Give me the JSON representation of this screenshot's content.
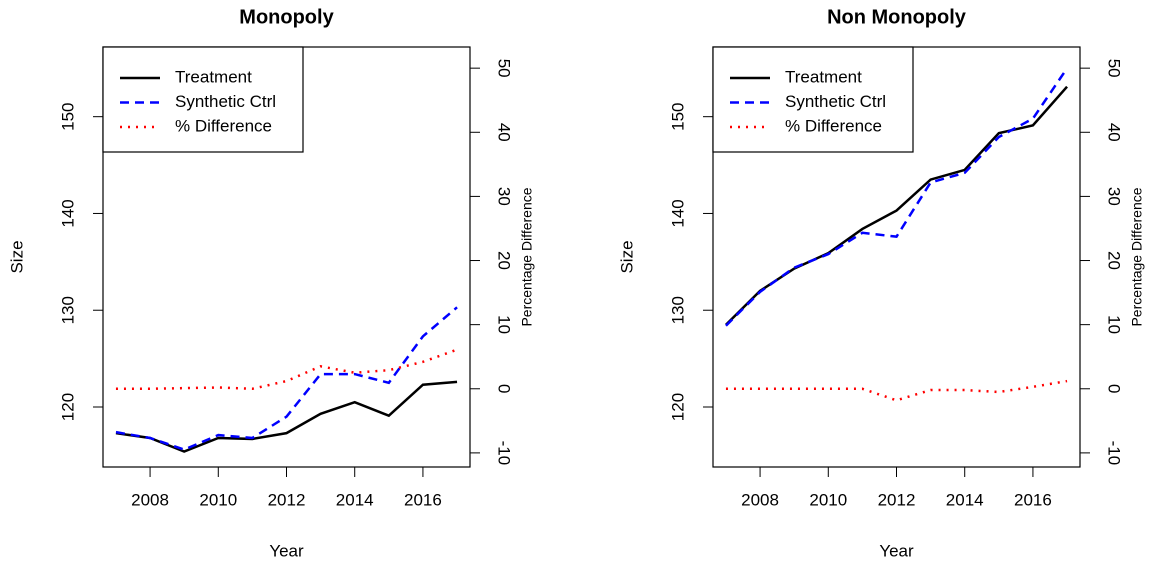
{
  "chart_data": [
    {
      "type": "line",
      "title": "Monopoly",
      "x_label": "Year",
      "y_label": "Size",
      "y2_label": "Percentage Difference",
      "x": [
        2007,
        2008,
        2009,
        2010,
        2011,
        2012,
        2013,
        2014,
        2015,
        2016,
        2017
      ],
      "series": [
        {
          "name": "Treatment",
          "color": "#000000",
          "dash": "solid",
          "values": [
            117.3,
            116.8,
            115.4,
            116.8,
            116.7,
            117.3,
            119.3,
            120.5,
            119.1,
            122.3,
            122.6
          ]
        },
        {
          "name": "Synthetic Ctrl",
          "color": "#0000ff",
          "dash": "dashed",
          "values": [
            117.4,
            116.8,
            115.6,
            117.1,
            116.8,
            119.0,
            123.4,
            123.4,
            122.5,
            127.3,
            130.3
          ]
        },
        {
          "name": "% Difference",
          "color": "#ff0000",
          "dash": "dotted",
          "axis": "y2",
          "values": [
            0,
            0,
            0.1,
            0.2,
            0,
            1.2,
            3.5,
            2.5,
            2.9,
            4.2,
            6.1
          ]
        }
      ],
      "xlim": [
        2006.62,
        2017.38
      ],
      "xticks": [
        2008,
        2010,
        2012,
        2014,
        2016
      ],
      "ylim": [
        113.8,
        157.2
      ],
      "yticks": [
        120,
        130,
        140,
        150
      ],
      "y2lim": [
        -12.2,
        53.3
      ],
      "y2ticks": [
        -10,
        0,
        10,
        20,
        30,
        40,
        50
      ],
      "legend": "top-left"
    },
    {
      "type": "line",
      "title": "Non Monopoly",
      "x_label": "Year",
      "y_label": "Size",
      "y2_label": "Percentage Difference",
      "x": [
        2007,
        2008,
        2009,
        2010,
        2011,
        2012,
        2013,
        2014,
        2015,
        2016,
        2017
      ],
      "series": [
        {
          "name": "Treatment",
          "color": "#000000",
          "dash": "solid",
          "values": [
            128.5,
            132.0,
            134.3,
            135.9,
            138.4,
            140.3,
            143.5,
            144.5,
            148.3,
            149.1,
            153.1
          ]
        },
        {
          "name": "Synthetic Ctrl",
          "color": "#0000ff",
          "dash": "dashed",
          "values": [
            128.4,
            131.9,
            134.4,
            135.8,
            138.0,
            137.6,
            143.2,
            144.2,
            147.9,
            149.8,
            155.0
          ]
        },
        {
          "name": "% Difference",
          "color": "#ff0000",
          "dash": "dotted",
          "axis": "y2",
          "values": [
            0,
            0,
            0,
            0,
            0,
            -1.8,
            -0.2,
            -0.2,
            -0.5,
            0.3,
            1.2
          ]
        }
      ],
      "xlim": [
        2006.62,
        2017.38
      ],
      "xticks": [
        2008,
        2010,
        2012,
        2014,
        2016
      ],
      "ylim": [
        113.8,
        157.2
      ],
      "yticks": [
        120,
        130,
        140,
        150
      ],
      "y2lim": [
        -12.2,
        53.3
      ],
      "y2ticks": [
        -10,
        0,
        10,
        20,
        30,
        40,
        50
      ],
      "legend": "top-left"
    }
  ]
}
